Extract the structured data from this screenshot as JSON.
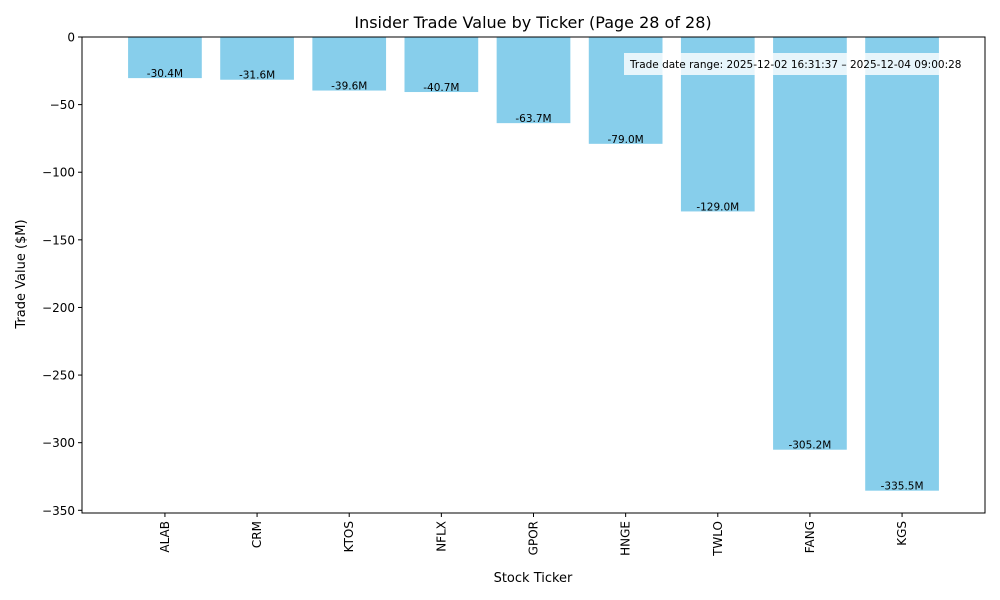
{
  "chart_data": {
    "type": "bar",
    "title": "Insider Trade Value by Ticker (Page 28 of 28)",
    "xlabel": "Stock Ticker",
    "ylabel": "Trade Value ($M)",
    "categories": [
      "ALAB",
      "CRM",
      "KTOS",
      "NFLX",
      "GPOR",
      "HNGE",
      "TWLO",
      "FANG",
      "KGS"
    ],
    "values": [
      -30.4,
      -31.6,
      -39.6,
      -40.7,
      -63.7,
      -79.0,
      -129.0,
      -305.2,
      -335.5
    ],
    "data_labels": [
      "-30.4M",
      "-31.6M",
      "-39.6M",
      "-40.7M",
      "-63.7M",
      "-79.0M",
      "-129.0M",
      "-305.2M",
      "-335.5M"
    ],
    "ylim": [
      -352,
      0
    ],
    "yticks": [
      0,
      -50,
      -100,
      -150,
      -200,
      -250,
      -300,
      -350
    ],
    "ytick_labels": [
      "0",
      "−50",
      "−100",
      "−150",
      "−200",
      "−250",
      "−300",
      "−350"
    ],
    "bar_color": "#87ceeb",
    "grid": false,
    "annotation": {
      "text": "Trade date range: 2025-12-02 16:31:37 – 2025-12-04 09:00:28",
      "placement": "top-right"
    }
  }
}
